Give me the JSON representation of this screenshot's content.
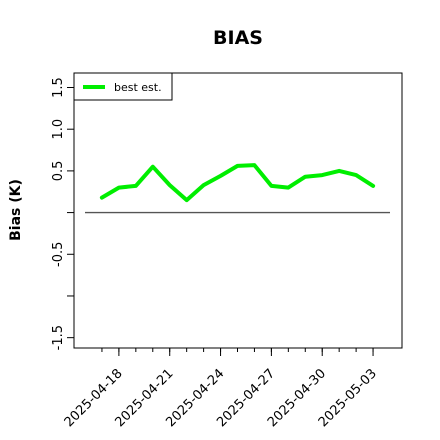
{
  "chart_data": {
    "type": "line",
    "title": "BIAS",
    "xlabel": "",
    "ylabel": "Bias (K)",
    "ylim": [
      -1.6,
      1.65
    ],
    "yticks": [
      -1.5,
      -0.5,
      0.5,
      1.0,
      1.5
    ],
    "yticklabels": [
      "-1.5",
      "-0.5",
      "0.5",
      "1.0",
      "1.5"
    ],
    "xlim": [
      "2025-04-16",
      "2025-05-04"
    ],
    "xticks": [
      "2025-04-18",
      "2025-04-21",
      "2025-04-24",
      "2025-04-27",
      "2025-04-30",
      "2025-05-03"
    ],
    "reference_line": 0,
    "grid": false,
    "legend": {
      "position": "top-left"
    },
    "colors": {
      "series": "#00ee00",
      "reference": "#555555",
      "axis": "#000000"
    },
    "x": [
      "2025-04-17",
      "2025-04-18",
      "2025-04-19",
      "2025-04-20",
      "2025-04-21",
      "2025-04-22",
      "2025-04-23",
      "2025-04-24",
      "2025-04-25",
      "2025-04-26",
      "2025-04-27",
      "2025-04-28",
      "2025-04-29",
      "2025-04-30",
      "2025-05-01",
      "2025-05-02",
      "2025-05-03"
    ],
    "series": [
      {
        "name": "best est.",
        "values": [
          0.18,
          0.3,
          0.32,
          0.55,
          0.33,
          0.15,
          0.33,
          0.44,
          0.56,
          0.57,
          0.32,
          0.3,
          0.43,
          0.45,
          0.5,
          0.45,
          0.32
        ]
      }
    ]
  }
}
